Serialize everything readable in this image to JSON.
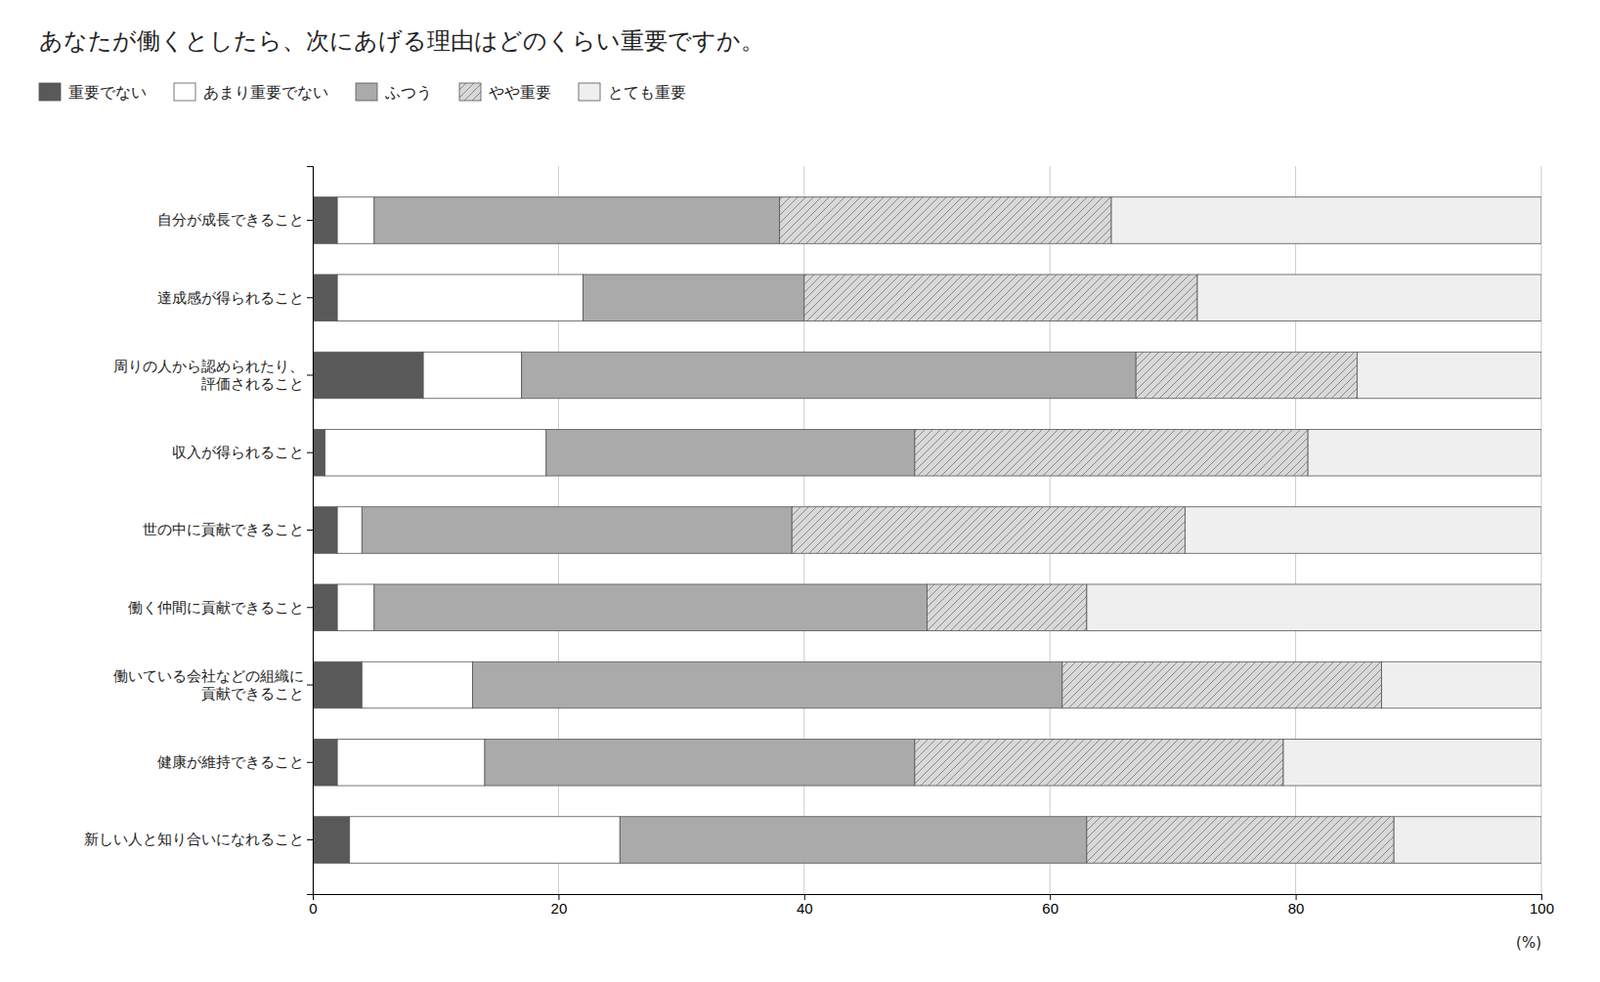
{
  "chart_data": {
    "type": "bar",
    "orientation": "horizontal",
    "stacked": true,
    "title": "あなたが働くとしたら、次にあげる理由はどのくらい重要ですか。",
    "categories": [
      "自分が成長できること",
      "達成感が得られること",
      "周りの人から認められたり、\n    評価されること",
      "収入が得られること",
      "世の中に貢献できること",
      "働く仲間に貢献できること",
      "働いている会社などの組織に\n    貢献できること",
      "健康が維持できること",
      "新しい人と知り合いになれること"
    ],
    "series": [
      {
        "name": "重要でない",
        "color": "#595959",
        "values": [
          2,
          2,
          9,
          1,
          2,
          2,
          4,
          2,
          3
        ]
      },
      {
        "name": "あまり重要でない",
        "color": "#ffffff",
        "values": [
          3,
          20,
          8,
          18,
          2,
          3,
          9,
          12,
          22
        ]
      },
      {
        "name": "ふつう",
        "color": "#aaaaaa",
        "values": [
          33,
          18,
          50,
          30,
          35,
          45,
          48,
          35,
          38
        ]
      },
      {
        "name": "やや重要",
        "color": "#d8d8d8",
        "values": [
          27,
          32,
          18,
          32,
          32,
          13,
          26,
          30,
          25
        ]
      },
      {
        "name": "とても重要",
        "color": "#efefef",
        "values": [
          35,
          28,
          15,
          19,
          29,
          37,
          13,
          21,
          12
        ]
      }
    ],
    "xlabel": "(%)",
    "xlim": [
      0,
      100
    ],
    "xticks": [
      0,
      20,
      40,
      60,
      80,
      100
    ],
    "grid": true,
    "legend": "top"
  }
}
